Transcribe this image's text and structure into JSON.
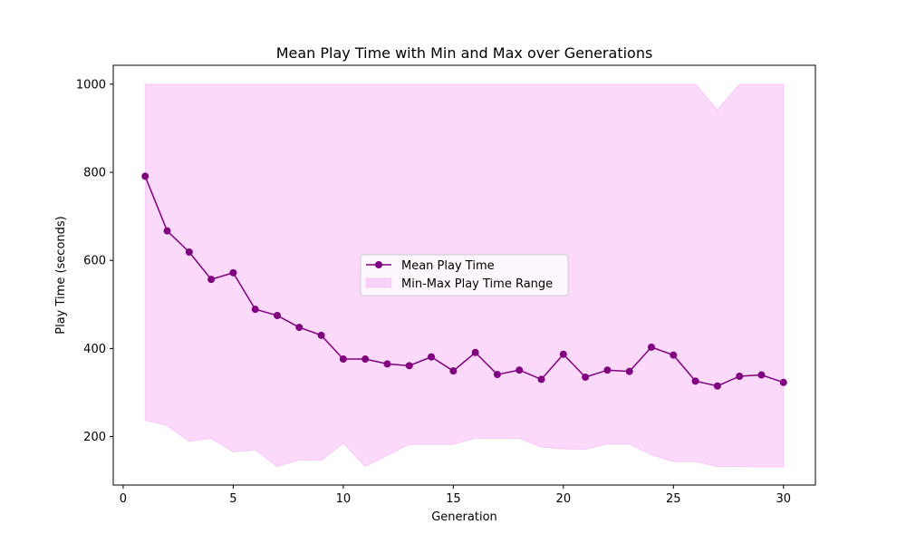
{
  "chart_data": {
    "type": "line",
    "title": "Mean Play Time with Min and Max over Generations",
    "xlabel": "Generation",
    "ylabel": "Play Time (seconds)",
    "xlim": [
      -0.45,
      31.45
    ],
    "ylim": [
      90,
      1043
    ],
    "x_ticks": [
      0,
      5,
      10,
      15,
      20,
      25,
      30
    ],
    "y_ticks": [
      200,
      400,
      600,
      800,
      1000
    ],
    "grid": false,
    "legend_position": "center",
    "x": [
      1,
      2,
      3,
      4,
      5,
      6,
      7,
      8,
      9,
      10,
      11,
      12,
      13,
      14,
      15,
      16,
      17,
      18,
      19,
      20,
      21,
      22,
      23,
      24,
      25,
      26,
      27,
      28,
      29,
      30
    ],
    "series": [
      {
        "name": "Mean Play Time",
        "kind": "line-markers",
        "color": "#800080",
        "values": [
          791,
          667,
          619,
          557,
          572,
          489,
          475,
          448,
          430,
          376,
          376,
          365,
          361,
          381,
          349,
          391,
          341,
          351,
          330,
          387,
          335,
          351,
          348,
          403,
          385,
          326,
          315,
          337,
          340,
          323
        ]
      },
      {
        "name": "Min-Max Play Time Range",
        "kind": "band",
        "color": "#ee82ee",
        "opacity": 0.3,
        "min": [
          237,
          225,
          189,
          196,
          165,
          170,
          132,
          147,
          146,
          185,
          132,
          157,
          182,
          182,
          182,
          196,
          196,
          196,
          176,
          172,
          171,
          183,
          183,
          159,
          143,
          143,
          132,
          132,
          131,
          131
        ],
        "max": [
          1000,
          1000,
          1000,
          1000,
          1000,
          1000,
          1000,
          1000,
          1000,
          1000,
          1000,
          1000,
          1000,
          1000,
          1000,
          1000,
          1000,
          1000,
          1000,
          1000,
          1000,
          1000,
          1000,
          1000,
          1000,
          1000,
          942,
          1000,
          1000,
          1000
        ]
      }
    ]
  }
}
